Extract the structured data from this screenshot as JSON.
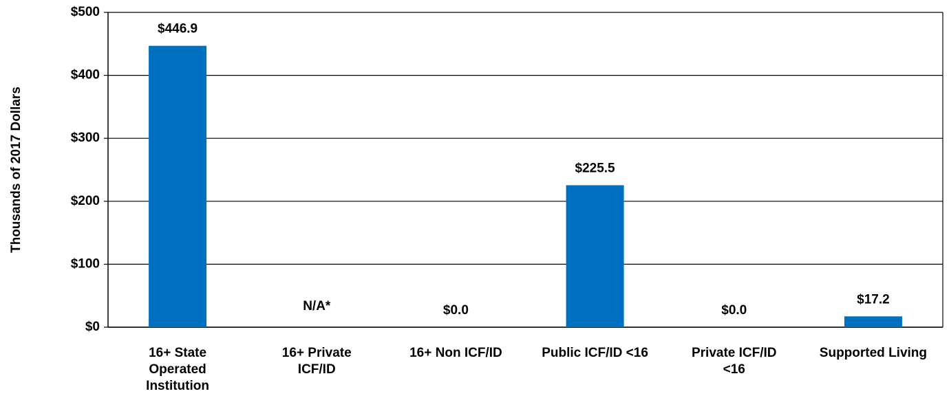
{
  "chart_data": {
    "type": "bar",
    "y_label": "Thousands of 2017 Dollars",
    "categories": [
      [
        "16+ State",
        "Operated",
        "Institution"
      ],
      [
        "16+ Private",
        "ICF/ID"
      ],
      [
        "16+ Non ICF/ID"
      ],
      [
        "Public ICF/ID <16"
      ],
      [
        "Private ICF/ID",
        "<16"
      ],
      [
        "Supported Living"
      ]
    ],
    "values": [
      446.9,
      null,
      0,
      225.5,
      0,
      17.2
    ],
    "value_labels": [
      "$446.9",
      "N/A*",
      "$0.0",
      "$225.5",
      "$0.0",
      "$17.2"
    ],
    "color": "#0070c0",
    "ylim": [
      0,
      500
    ],
    "yticks": [
      {
        "value": 0,
        "label": "$0"
      },
      {
        "value": 100,
        "label": "$100"
      },
      {
        "value": 200,
        "label": "$200"
      },
      {
        "value": 300,
        "label": "$300"
      },
      {
        "value": 400,
        "label": "$400"
      },
      {
        "value": 500,
        "label": "$500"
      }
    ],
    "grid": true
  }
}
